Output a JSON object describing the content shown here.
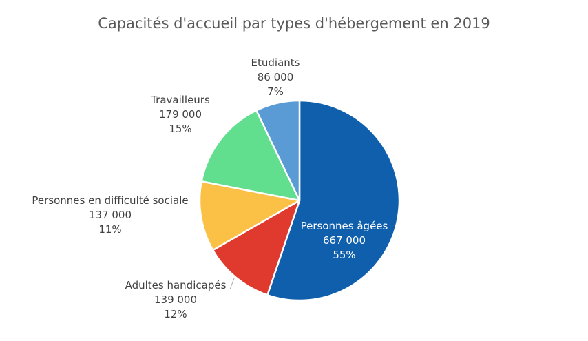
{
  "chart_data": {
    "type": "pie",
    "title": "Capacités d'accueil par types d'hébergement  en 2019",
    "slices": [
      {
        "label": "Personnes âgées",
        "value_text": "667 000",
        "percent_text": "55%",
        "value": 667000,
        "percent": 55,
        "color": "#0F5FAD",
        "label_style": "inside"
      },
      {
        "label": "Adultes handicapés",
        "value_text": "139 000",
        "percent_text": "12%",
        "value": 139000,
        "percent": 12,
        "color": "#E03A2F",
        "label_style": "outside"
      },
      {
        "label": "Personnes en difficulté sociale",
        "value_text": "137 000",
        "percent_text": "11%",
        "value": 137000,
        "percent": 11,
        "color": "#FBC146",
        "label_style": "outside"
      },
      {
        "label": "Travailleurs",
        "value_text": "179 000",
        "percent_text": "15%",
        "value": 179000,
        "percent": 15,
        "color": "#62DE8F",
        "label_style": "outside"
      },
      {
        "label": "Etudiants",
        "value_text": "86 000",
        "percent_text": "7%",
        "value": 86000,
        "percent": 7,
        "color": "#5B9BD5",
        "label_style": "outside"
      }
    ],
    "start_angle_deg": 0,
    "direction": "clockwise",
    "legend": "none"
  }
}
